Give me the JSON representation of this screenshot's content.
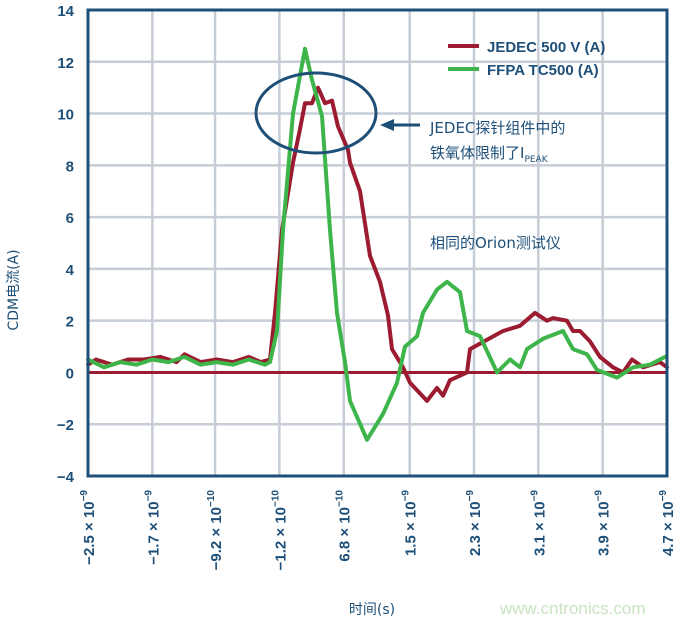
{
  "chart_data": {
    "type": "line",
    "xlabel": "时间(s)",
    "ylabel": "CDM电流(A)",
    "xlim": [
      -2.5e-09,
      4.7e-09
    ],
    "ylim": [
      -4,
      14
    ],
    "grid": true,
    "legend_position": "top-right",
    "zero_line": true,
    "colors": {
      "axis": "#1d4f78",
      "grid": "#c6cdd7",
      "jedec": "#9b1b30",
      "ffpa": "#3db54a",
      "zero_line": "#9b1b30",
      "annotation": "#1d4f78",
      "watermark": "#c9e4c2"
    },
    "yticks": [
      "14",
      "12",
      "10",
      "8",
      "6",
      "4",
      "2",
      "0",
      "−2",
      "−4"
    ],
    "ytick_values": [
      14,
      12,
      10,
      8,
      6,
      4,
      2,
      0,
      -2,
      -4
    ],
    "xticks": [
      {
        "m": "−2.5 × 10",
        "e": "−9",
        "v": -2.5e-09
      },
      {
        "m": "−1.7 × 10",
        "e": "−9",
        "v": -1.7e-09
      },
      {
        "m": "−9.2 × 10",
        "e": "−10",
        "v": -9.2e-10
      },
      {
        "m": "−1.2 × 10",
        "e": "−10",
        "v": -1.2e-10
      },
      {
        "m": "6.8 × 10",
        "e": "−10",
        "v": 6.8e-10
      },
      {
        "m": "1.5 × 10",
        "e": "−9",
        "v": 1.5e-09
      },
      {
        "m": "2.3 × 10",
        "e": "−9",
        "v": 2.3e-09
      },
      {
        "m": "3.1 × 10",
        "e": "−9",
        "v": 3.1e-09
      },
      {
        "m": "3.9 × 10",
        "e": "−9",
        "v": 3.9e-09
      },
      {
        "m": "4.7 × 10",
        "e": "−9",
        "v": 4.7e-09
      }
    ],
    "series": [
      {
        "name": "JEDEC 500 V (A)",
        "color": "#9b1b30",
        "x": [
          -2.5e-09,
          -2.4e-09,
          -2.2e-09,
          -2e-09,
          -1.8e-09,
          -1.6e-09,
          -1.4e-09,
          -1.3e-09,
          -1.1e-09,
          -9e-10,
          -7e-10,
          -5e-10,
          -3.5e-10,
          -2.37e-10,
          -1.75e-10,
          -8.8e-11,
          4.9e-11,
          1.36e-10,
          1.98e-10,
          2.85e-10,
          3.6e-10,
          4.47e-10,
          5.34e-10,
          6.09e-10,
          7.33e-10,
          7.58e-10,
          8.82e-10,
          1.007e-09,
          1.131e-09,
          1.231e-09,
          1.28e-09,
          1.417e-09,
          1.504e-09,
          1.716e-09,
          1.84e-09,
          1.915e-09,
          2.001e-09,
          2.213e-09,
          2.25e-09,
          2.661e-09,
          2.872e-09,
          3.059e-09,
          3.208e-09,
          3.282e-09,
          3.456e-09,
          3.531e-09,
          3.618e-09,
          3.742e-09,
          3.867e-09,
          4.028e-09,
          4.153e-09,
          4.265e-09,
          4.401e-09,
          4.613e-09,
          4.7e-09
        ],
        "y": [
          0.3,
          0.5,
          0.3,
          0.5,
          0.5,
          0.6,
          0.4,
          0.7,
          0.4,
          0.5,
          0.4,
          0.6,
          0.4,
          0.5,
          2.3,
          5.5,
          8.1,
          9.4,
          10.4,
          10.4,
          11.0,
          10.4,
          10.5,
          9.5,
          8.6,
          8.1,
          7.0,
          4.5,
          3.5,
          2.2,
          0.9,
          0.2,
          -0.4,
          -1.1,
          -0.6,
          -0.9,
          -0.3,
          0.0,
          0.9,
          1.6,
          1.8,
          2.3,
          2.0,
          2.1,
          2.0,
          1.6,
          1.6,
          1.2,
          0.6,
          0.2,
          0.0,
          0.5,
          0.2,
          0.4,
          0.2
        ]
      },
      {
        "name": "FFPA TC500 (A)",
        "color": "#3db54a",
        "x": [
          -2.5e-09,
          -2.3e-09,
          -2.1e-09,
          -1.9e-09,
          -1.7e-09,
          -1.5e-09,
          -1.3e-09,
          -1.1e-09,
          -9e-10,
          -7e-10,
          -5e-10,
          -3e-10,
          -2.37e-10,
          -1.5e-10,
          -7.5e-11,
          4.9e-11,
          1.98e-10,
          2.85e-10,
          4.1e-10,
          5.09e-10,
          5.96e-10,
          6.96e-10,
          7.58e-10,
          9.69e-10,
          1.168e-09,
          1.342e-09,
          1.442e-09,
          1.591e-09,
          1.666e-09,
          1.84e-09,
          1.964e-09,
          2.126e-09,
          2.213e-09,
          2.375e-09,
          2.586e-09,
          2.748e-09,
          2.872e-09,
          2.959e-09,
          3.158e-09,
          3.407e-09,
          3.531e-09,
          3.705e-09,
          3.829e-09,
          4.078e-09,
          4.277e-09,
          4.489e-09,
          4.675e-09
        ],
        "y": [
          0.5,
          0.2,
          0.4,
          0.3,
          0.5,
          0.4,
          0.6,
          0.3,
          0.4,
          0.3,
          0.5,
          0.3,
          0.4,
          1.6,
          5.5,
          10.0,
          12.5,
          11.3,
          9.9,
          5.5,
          2.3,
          0.4,
          -1.1,
          -2.6,
          -1.6,
          -0.4,
          1.0,
          1.4,
          2.3,
          3.2,
          3.5,
          3.1,
          1.6,
          1.4,
          0.0,
          0.5,
          0.2,
          0.9,
          1.3,
          1.6,
          0.9,
          0.7,
          0.1,
          -0.2,
          0.2,
          0.3,
          0.6
        ]
      }
    ],
    "annotations": [
      {
        "line1": "JEDEC探针组件中的",
        "line2_main": "铁氧体限制了I",
        "line2_sub": "PEAK",
        "target": {
          "x": 3.2e-10,
          "y": 10
        }
      },
      {
        "text": "相同的Orion测试仪"
      }
    ]
  },
  "watermark": "www.cntronics.com"
}
